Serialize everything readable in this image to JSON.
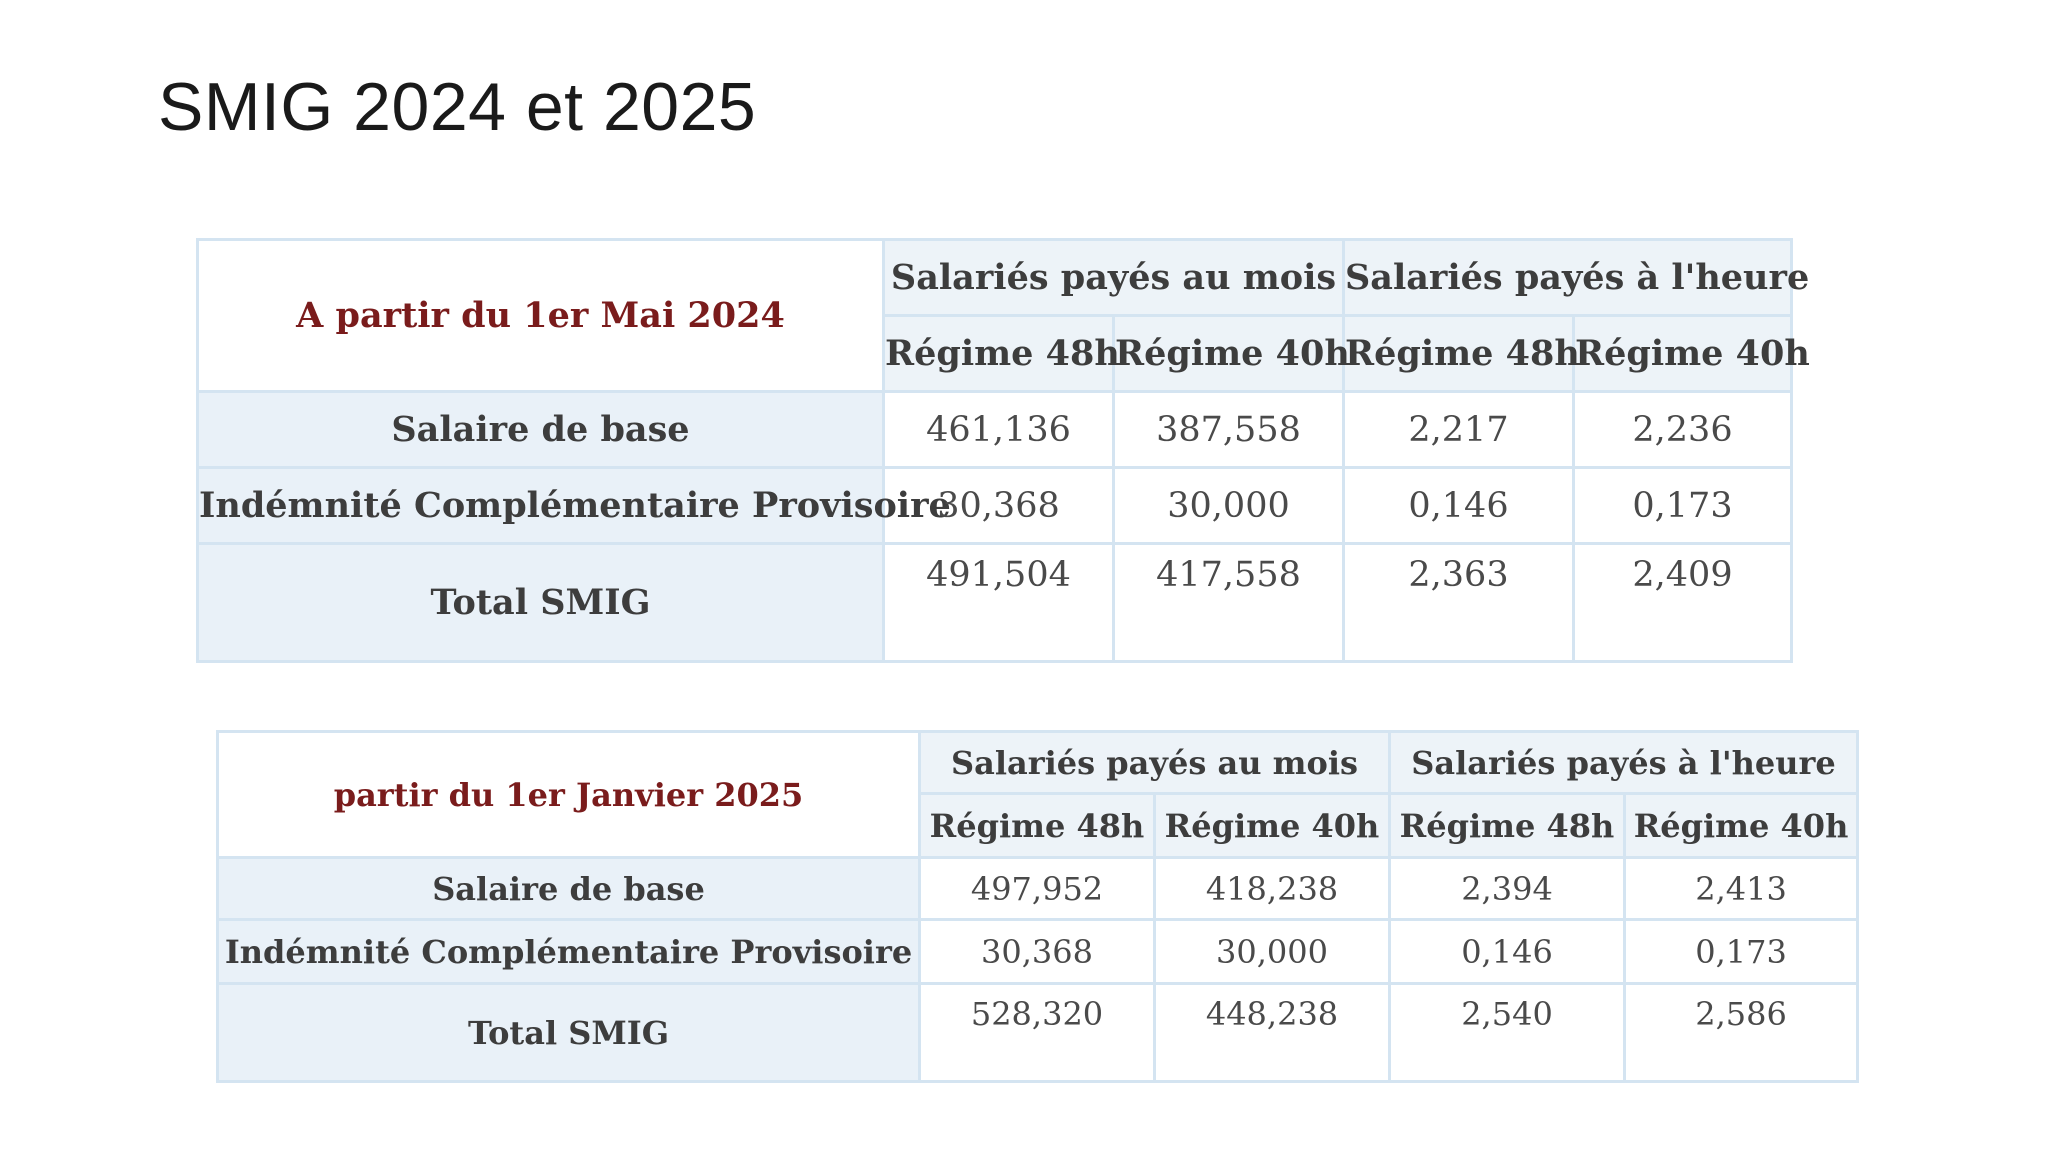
{
  "title": "SMIG 2024 et 2025",
  "tables": [
    {
      "period": "A partir du 1er Mai 2024",
      "groups": [
        "Salariés payés au mois",
        "Salariés payés à l'heure"
      ],
      "regimes": [
        "Régime 48h",
        "Régime 40h",
        "Régime 48h",
        "Régime 40h"
      ],
      "rows": [
        {
          "label": "Salaire de base",
          "values": [
            "461,136",
            "387,558",
            "2,217",
            "2,236"
          ]
        },
        {
          "label": "Indémnité Complémentaire Provisoire",
          "values": [
            "30,368",
            "30,000",
            "0,146",
            "0,173"
          ]
        },
        {
          "label": "Total SMIG",
          "values": [
            "491,504",
            "417,558",
            "2,363",
            "2,409"
          ]
        }
      ]
    },
    {
      "period": "partir du 1er Janvier 2025",
      "groups": [
        "Salariés payés au mois",
        "Salariés payés à l'heure"
      ],
      "regimes": [
        "Régime 48h",
        "Régime 40h",
        "Régime 48h",
        "Régime 40h"
      ],
      "rows": [
        {
          "label": "Salaire de base",
          "values": [
            "497,952",
            "418,238",
            "2,394",
            "2,413"
          ]
        },
        {
          "label": "Indémnité Complémentaire Provisoire",
          "values": [
            "30,368",
            "30,000",
            "0,146",
            "0,173"
          ]
        },
        {
          "label": "Total SMIG",
          "values": [
            "528,320",
            "448,238",
            "2,540",
            "2,586"
          ]
        }
      ]
    }
  ]
}
